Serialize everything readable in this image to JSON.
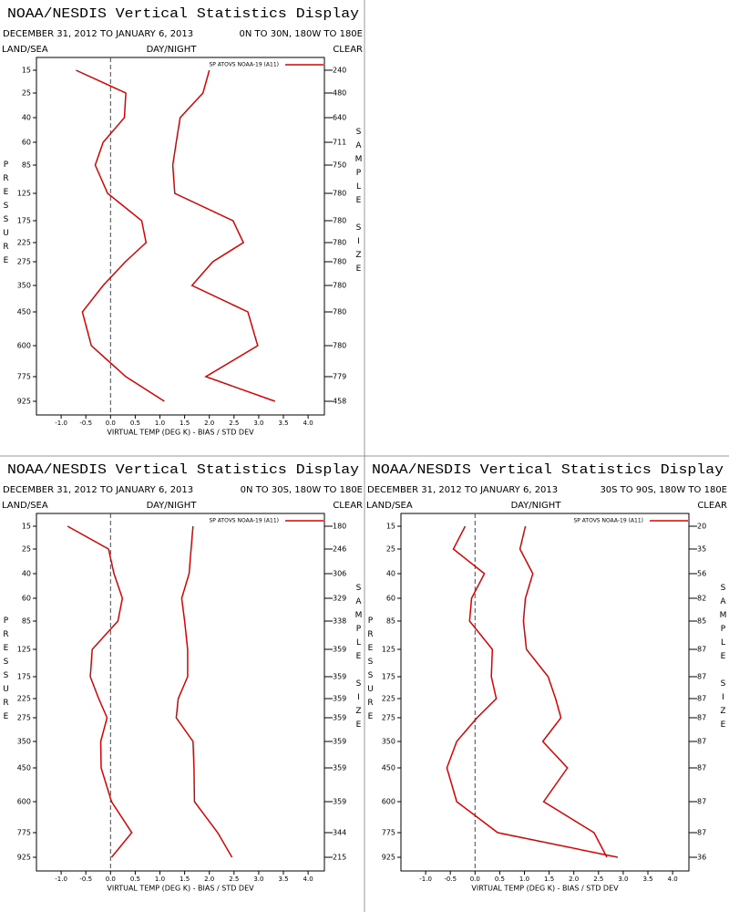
{
  "chart_data": [
    {
      "type": "line",
      "title": "NOAA/NESDIS Vertical Statistics Display",
      "date_range": "DECEMBER 31, 2012 TO JANUARY 6, 2013",
      "region": "0N TO 30N, 180W TO 180E",
      "land_sea": "LAND/SEA",
      "day_night": "DAY/NIGHT",
      "clear": "CLEAR",
      "x_label": "VIRTUAL TEMP (DEG K) - BIAS / STD DEV",
      "y_label": "PRESSURE",
      "y2_label": "SAMPLE SIZE",
      "categories": [
        15,
        25,
        40,
        60,
        85,
        125,
        175,
        225,
        275,
        350,
        450,
        600,
        775,
        925
      ],
      "sample_sizes": [
        240,
        480,
        640,
        711,
        750,
        780,
        780,
        780,
        780,
        780,
        780,
        780,
        779,
        458
      ],
      "series": [
        {
          "name": "SP ATOVS NOAA-19 (A11)",
          "color": "#dd0000",
          "values": [
            -0.7,
            0.31,
            0.28,
            -0.15,
            -0.31,
            -0.06,
            0.63,
            0.72,
            0.3,
            -0.15,
            -0.57,
            -0.39,
            0.31,
            1.09
          ],
          "std_dev": [
            2.0,
            1.87,
            1.41,
            1.33,
            1.26,
            1.3,
            2.48,
            2.69,
            2.07,
            1.65,
            2.78,
            2.98,
            1.93,
            3.33
          ]
        }
      ],
      "xlim": [
        -1.5,
        4.33
      ],
      "xticks": [
        {
          "value": -1,
          "label": "-1.0"
        },
        -0.5,
        {
          "value": 0,
          "label": "0.0"
        },
        0.5,
        {
          "value": 1,
          "label": "1.0"
        },
        1.5,
        {
          "value": 2,
          "label": "2.0"
        },
        2.5,
        {
          "value": 3,
          "label": "3.0"
        },
        3.5,
        {
          "value": 4,
          "label": "4.0"
        }
      ]
    },
    {
      "type": "line",
      "title": "NOAA/NESDIS Vertical Statistics Display",
      "date_range": "DECEMBER 31, 2012 TO JANUARY 6, 2013",
      "region": "0N TO 30S, 180W TO 180E",
      "land_sea": "LAND/SEA",
      "day_night": "DAY/NIGHT",
      "clear": "CLEAR",
      "x_label": "VIRTUAL TEMP (DEG K) - BIAS / STD DEV",
      "y_label": "PRESSURE",
      "y2_label": "SAMPLE SIZE",
      "categories": [
        15,
        25,
        40,
        60,
        85,
        125,
        175,
        225,
        275,
        350,
        450,
        600,
        775,
        925
      ],
      "sample_sizes": [
        180,
        246,
        306,
        329,
        338,
        359,
        359,
        359,
        359,
        359,
        359,
        359,
        344,
        215
      ],
      "series": [
        {
          "name": "SP ATOVS NOAA-19 (A11)",
          "color": "#dd0000",
          "values": [
            -0.87,
            -0.04,
            0.07,
            0.24,
            0.15,
            -0.37,
            -0.41,
            -0.24,
            -0.07,
            -0.2,
            -0.19,
            0.02,
            0.43,
            0.02
          ],
          "std_dev": [
            1.67,
            1.63,
            1.59,
            1.44,
            1.5,
            1.56,
            1.56,
            1.37,
            1.33,
            1.67,
            1.69,
            1.7,
            2.17,
            2.46
          ]
        }
      ],
      "xlim": [
        -1.5,
        4.33
      ],
      "xticks": [
        {
          "value": -1,
          "label": "-1.0"
        },
        -0.5,
        {
          "value": 0,
          "label": "0.0"
        },
        0.5,
        {
          "value": 1,
          "label": "1.0"
        },
        1.5,
        {
          "value": 2,
          "label": "2.0"
        },
        2.5,
        {
          "value": 3,
          "label": "3.0"
        },
        3.5,
        {
          "value": 4,
          "label": "4.0"
        }
      ]
    },
    {
      "type": "line",
      "title": "NOAA/NESDIS Vertical Statistics Display",
      "date_range": "DECEMBER 31, 2012 TO JANUARY 6, 2013",
      "region": "30S TO 90S, 180W TO 180E",
      "land_sea": "LAND/SEA",
      "day_night": "DAY/NIGHT",
      "clear": "CLEAR",
      "x_label": "VIRTUAL TEMP (DEG K) - BIAS / STD DEV",
      "y_label": "PRESSURE",
      "y2_label": "SAMPLE SIZE",
      "categories": [
        15,
        25,
        40,
        60,
        85,
        125,
        175,
        225,
        275,
        350,
        450,
        600,
        775,
        925
      ],
      "sample_sizes": [
        20,
        35,
        56,
        82,
        85,
        87,
        87,
        87,
        87,
        87,
        87,
        87,
        87,
        36
      ],
      "series": [
        {
          "name": "SP ATOVS NOAA-19 (A11)",
          "color": "#dd0000",
          "values": [
            -0.2,
            -0.44,
            0.19,
            -0.07,
            -0.11,
            0.35,
            0.33,
            0.43,
            0.04,
            -0.37,
            -0.57,
            -0.37,
            0.46,
            2.89
          ],
          "std_dev": [
            1.02,
            0.91,
            1.17,
            1.02,
            0.98,
            1.04,
            1.48,
            1.63,
            1.74,
            1.37,
            1.87,
            1.39,
            2.41,
            2.67
          ]
        }
      ],
      "xlim": [
        -1.5,
        4.33
      ],
      "xticks": [
        {
          "value": -1,
          "label": "-1.0"
        },
        -0.5,
        {
          "value": 0,
          "label": "0.0"
        },
        0.5,
        {
          "value": 1,
          "label": "1.0"
        },
        1.5,
        {
          "value": 2,
          "label": "2.0"
        },
        2.5,
        {
          "value": 3,
          "label": "3.0"
        },
        3.5,
        {
          "value": 4,
          "label": "4.0"
        }
      ]
    }
  ]
}
